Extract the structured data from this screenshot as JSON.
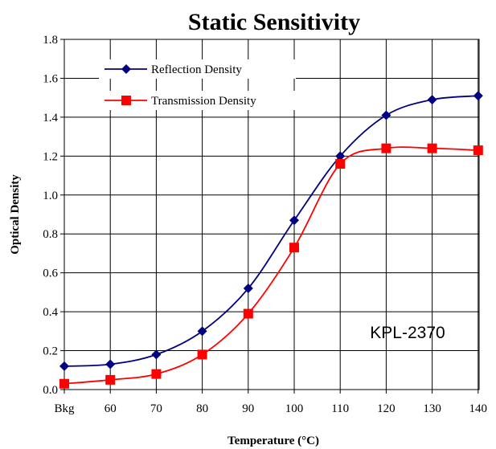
{
  "chart_data": {
    "type": "line",
    "title": "Static Sensitivity",
    "xlabel": "Temperature (°C)",
    "ylabel": "Optical Density",
    "categories": [
      "Bkg",
      "60",
      "70",
      "80",
      "90",
      "100",
      "110",
      "120",
      "130",
      "140"
    ],
    "ylim": [
      0,
      1.8
    ],
    "yticks": [
      "0.0",
      "0.2",
      "0.4",
      "0.6",
      "0.8",
      "1.0",
      "1.2",
      "1.4",
      "1.6",
      "1.8"
    ],
    "grid": true,
    "legend_position": "top-left",
    "annotation": "KPL-2370",
    "series": [
      {
        "name": "Reflection Density",
        "color": "#000080",
        "marker": "diamond",
        "values": [
          0.12,
          0.13,
          0.18,
          0.3,
          0.52,
          0.87,
          1.2,
          1.41,
          1.49,
          1.51
        ]
      },
      {
        "name": "Transmission Density",
        "color": "#ff0000",
        "marker": "square",
        "values": [
          0.03,
          0.05,
          0.08,
          0.18,
          0.39,
          0.73,
          1.16,
          1.24,
          1.24,
          1.23
        ]
      }
    ]
  }
}
